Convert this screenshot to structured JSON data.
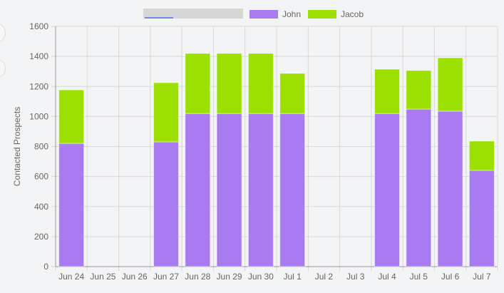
{
  "chart_data": {
    "type": "bar",
    "stacked": true,
    "title": "",
    "xlabel": "",
    "ylabel": "Contacted Prospects",
    "ylim": [
      0,
      1600
    ],
    "yticks": [
      0,
      200,
      400,
      600,
      800,
      1000,
      1200,
      1400,
      1600
    ],
    "grid": true,
    "legend_position": "top-center",
    "categories": [
      "Jun 24",
      "Jun 25",
      "Jun 26",
      "Jun 27",
      "Jun 28",
      "Jun 29",
      "Jun 30",
      "Jul 1",
      "Jul 2",
      "Jul 3",
      "Jul 4",
      "Jul 5",
      "Jul 6",
      "Jul 7"
    ],
    "series": [
      {
        "name": "John",
        "color": "#a97bf0",
        "values": [
          821,
          0,
          0,
          831,
          1020,
          1020,
          1020,
          1020,
          0,
          0,
          1020,
          1049,
          1035,
          641
        ]
      },
      {
        "name": "Jacob",
        "color": "#9be000",
        "values": [
          356,
          0,
          0,
          394,
          400,
          400,
          400,
          267,
          0,
          0,
          295,
          257,
          356,
          195
        ]
      }
    ]
  }
}
